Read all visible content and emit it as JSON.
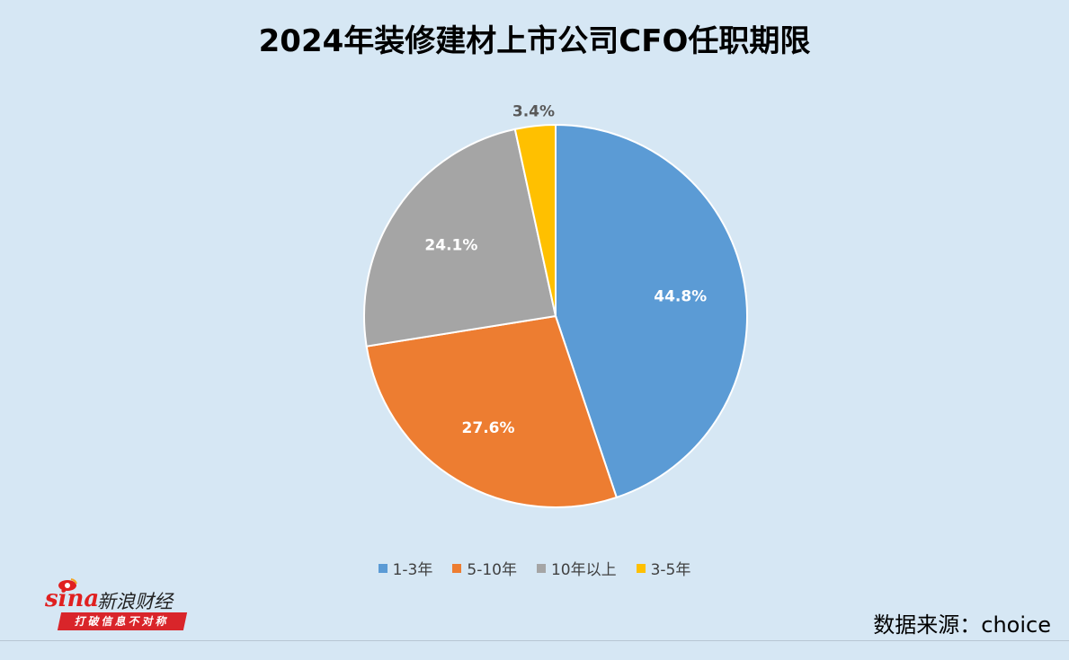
{
  "title": "2024年装修建材上市公司CFO任职期限",
  "chart_data": {
    "type": "pie",
    "title": "2024年装修建材上市公司CFO任职期限",
    "categories": [
      "1-3年",
      "5-10年",
      "10年以上",
      "3-5年"
    ],
    "values": [
      44.8,
      27.6,
      24.1,
      3.4
    ],
    "labels": [
      "44.8%",
      "27.6%",
      "24.1%",
      "3.4%"
    ],
    "colors": [
      "#5b9bd5",
      "#ed7d31",
      "#a5a5a5",
      "#ffc000"
    ],
    "label_colors": [
      "#ffffff",
      "#ffffff",
      "#ffffff",
      "#595959"
    ],
    "start_angle_deg": 0,
    "direction": "clockwise",
    "legend_position": "bottom"
  },
  "logo": {
    "brand": "sina",
    "name": "新浪财经",
    "tagline": "打破信息不对称"
  },
  "source": "数据来源：choice"
}
